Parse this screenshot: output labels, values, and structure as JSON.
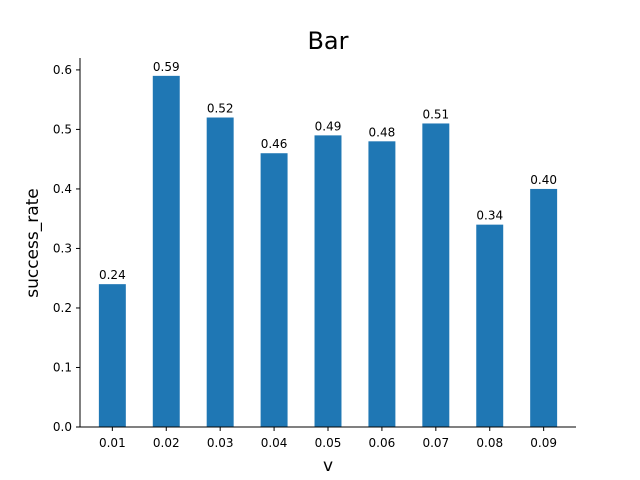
{
  "chart_data": {
    "type": "bar",
    "title": "Bar",
    "xlabel": "v",
    "ylabel": "success_rate",
    "categories": [
      "0.01",
      "0.02",
      "0.03",
      "0.04",
      "0.05",
      "0.06",
      "0.07",
      "0.08",
      "0.09"
    ],
    "values": [
      0.24,
      0.59,
      0.52,
      0.46,
      0.49,
      0.48,
      0.51,
      0.34,
      0.4
    ],
    "data_labels": [
      "0.24",
      "0.59",
      "0.52",
      "0.46",
      "0.49",
      "0.48",
      "0.51",
      "0.34",
      "0.40"
    ],
    "yticks": [
      "0.0",
      "0.1",
      "0.2",
      "0.3",
      "0.4",
      "0.5",
      "0.6"
    ],
    "ylim": [
      0,
      0.62
    ],
    "grid": false,
    "bar_color": "#1f77b4",
    "spines": [
      "left",
      "bottom"
    ]
  }
}
